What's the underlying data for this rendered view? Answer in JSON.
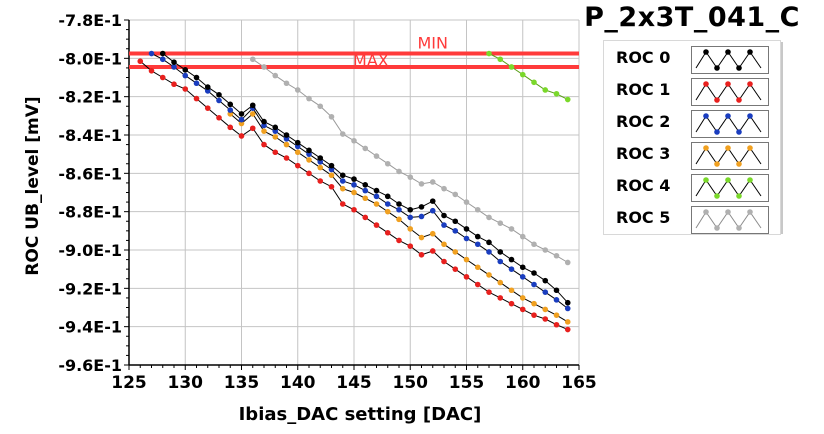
{
  "chart_data": {
    "type": "line",
    "title": "P_2x3T_041_C",
    "xlabel": "Ibias_DAC setting [DAC]",
    "ylabel": "ROC UB_level [mV]",
    "xlim": [
      125,
      165
    ],
    "ylim": [
      -0.96,
      -0.78
    ],
    "xticks": [
      125,
      130,
      135,
      140,
      145,
      150,
      155,
      160,
      165
    ],
    "yticks": [
      -0.96,
      -0.94,
      -0.92,
      -0.9,
      -0.88,
      -0.86,
      -0.84,
      -0.82,
      -0.8,
      -0.78
    ],
    "ytick_labels": [
      "-9.6E-1",
      "-9.4E-1",
      "-9.2E-1",
      "-9.0E-1",
      "-8.8E-1",
      "-8.6E-1",
      "-8.4E-1",
      "-8.2E-1",
      "-8.0E-1",
      "-7.8E-1"
    ],
    "xtick_labels": [
      "125",
      "130",
      "135",
      "140",
      "145",
      "150",
      "155",
      "160",
      "165"
    ],
    "grid": true,
    "legend_position": "right",
    "reference_lines": [
      {
        "name": "MIN",
        "y": -0.7975,
        "color": "#ff3a3a"
      },
      {
        "name": "MAX",
        "y": -0.8045,
        "color": "#ff3a3a"
      }
    ],
    "series": [
      {
        "name": "ROC 0",
        "color": "#000000",
        "x": [
          128,
          129,
          130,
          131,
          132,
          133,
          134,
          135,
          136,
          137,
          138,
          139,
          140,
          141,
          142,
          143,
          144,
          145,
          146,
          147,
          148,
          149,
          150,
          151,
          152,
          153,
          154,
          155,
          156,
          157,
          158,
          159,
          160,
          161,
          162,
          163,
          164
        ],
        "y": [
          -0.7975,
          -0.802,
          -0.806,
          -0.81,
          -0.815,
          -0.819,
          -0.824,
          -0.829,
          -0.8245,
          -0.833,
          -0.836,
          -0.84,
          -0.844,
          -0.848,
          -0.852,
          -0.856,
          -0.861,
          -0.863,
          -0.866,
          -0.869,
          -0.872,
          -0.876,
          -0.879,
          -0.8775,
          -0.8745,
          -0.882,
          -0.885,
          -0.889,
          -0.893,
          -0.896,
          -0.901,
          -0.905,
          -0.909,
          -0.912,
          -0.916,
          -0.921,
          -0.9275
        ]
      },
      {
        "name": "ROC 1",
        "color": "#e8201e",
        "x": [
          126,
          127,
          128,
          129,
          130,
          131,
          132,
          133,
          134,
          135,
          136,
          137,
          138,
          139,
          140,
          141,
          142,
          143,
          144,
          145,
          146,
          147,
          148,
          149,
          150,
          151,
          152,
          153,
          154,
          155,
          156,
          157,
          158,
          159,
          160,
          161,
          162,
          163,
          164
        ],
        "y": [
          -0.8015,
          -0.8065,
          -0.81,
          -0.8135,
          -0.816,
          -0.821,
          -0.826,
          -0.831,
          -0.836,
          -0.8405,
          -0.8365,
          -0.845,
          -0.849,
          -0.852,
          -0.856,
          -0.86,
          -0.864,
          -0.867,
          -0.876,
          -0.879,
          -0.883,
          -0.887,
          -0.891,
          -0.895,
          -0.898,
          -0.9025,
          -0.9005,
          -0.906,
          -0.91,
          -0.914,
          -0.918,
          -0.922,
          -0.925,
          -0.928,
          -0.931,
          -0.934,
          -0.936,
          -0.939,
          -0.9415
        ]
      },
      {
        "name": "ROC 2",
        "color": "#1a3dbf",
        "x": [
          127,
          128,
          129,
          130,
          131,
          132,
          133,
          134,
          135,
          136,
          137,
          138,
          139,
          140,
          141,
          142,
          143,
          144,
          145,
          146,
          147,
          148,
          149,
          150,
          151,
          152,
          153,
          154,
          155,
          156,
          157,
          158,
          159,
          160,
          161,
          162,
          163,
          164
        ],
        "y": [
          -0.7975,
          -0.8005,
          -0.8045,
          -0.809,
          -0.813,
          -0.817,
          -0.822,
          -0.827,
          -0.832,
          -0.826,
          -0.835,
          -0.838,
          -0.842,
          -0.846,
          -0.85,
          -0.854,
          -0.858,
          -0.864,
          -0.866,
          -0.869,
          -0.872,
          -0.876,
          -0.879,
          -0.883,
          -0.8825,
          -0.8795,
          -0.887,
          -0.89,
          -0.894,
          -0.897,
          -0.901,
          -0.906,
          -0.91,
          -0.914,
          -0.918,
          -0.922,
          -0.926,
          -0.9305
        ]
      },
      {
        "name": "ROC 3",
        "color": "#f0a020",
        "x": [
          134,
          135,
          136,
          137,
          138,
          139,
          140,
          141,
          142,
          143,
          144,
          145,
          146,
          147,
          148,
          149,
          150,
          151,
          152,
          153,
          154,
          155,
          156,
          157,
          158,
          159,
          160,
          161,
          162,
          163,
          164
        ],
        "y": [
          -0.829,
          -0.834,
          -0.829,
          -0.838,
          -0.841,
          -0.845,
          -0.849,
          -0.853,
          -0.857,
          -0.861,
          -0.868,
          -0.87,
          -0.873,
          -0.876,
          -0.88,
          -0.884,
          -0.889,
          -0.8935,
          -0.8915,
          -0.897,
          -0.901,
          -0.905,
          -0.909,
          -0.913,
          -0.917,
          -0.921,
          -0.925,
          -0.928,
          -0.931,
          -0.934,
          -0.9375
        ]
      },
      {
        "name": "ROC 4",
        "color": "#7ad82a",
        "x": [
          157,
          158,
          159,
          160,
          161,
          162,
          163,
          164
        ],
        "y": [
          -0.7975,
          -0.8005,
          -0.8045,
          -0.8085,
          -0.8125,
          -0.8165,
          -0.8185,
          -0.8215
        ]
      },
      {
        "name": "ROC 5",
        "color": "#b0b0b0",
        "x": [
          136,
          137,
          138,
          139,
          140,
          141,
          142,
          143,
          144,
          145,
          146,
          147,
          148,
          149,
          150,
          151,
          152,
          153,
          154,
          155,
          156,
          157,
          158,
          159,
          160,
          161,
          162,
          163,
          164
        ],
        "y": [
          -0.8005,
          -0.8045,
          -0.809,
          -0.813,
          -0.8165,
          -0.821,
          -0.825,
          -0.8305,
          -0.8395,
          -0.843,
          -0.847,
          -0.851,
          -0.855,
          -0.859,
          -0.862,
          -0.8655,
          -0.8645,
          -0.868,
          -0.871,
          -0.875,
          -0.879,
          -0.883,
          -0.886,
          -0.889,
          -0.893,
          -0.897,
          -0.9,
          -0.903,
          -0.9065
        ]
      }
    ]
  }
}
